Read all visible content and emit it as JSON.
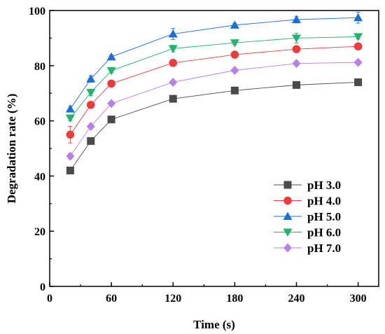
{
  "chart_data": {
    "type": "line",
    "xlabel": "Time (s)",
    "ylabel": "Degradation rate (%)",
    "xlim": [
      0,
      320
    ],
    "ylim": [
      0,
      100
    ],
    "xticks": [
      0,
      60,
      120,
      180,
      240,
      300
    ],
    "yticks": [
      0,
      20,
      40,
      60,
      80,
      100
    ],
    "x": [
      20,
      40,
      60,
      120,
      180,
      240,
      300
    ],
    "legend_position": "bottom-right",
    "grid": false,
    "series": [
      {
        "name": "pH 3.0",
        "color": "#4a4a4a",
        "marker": "square",
        "values": [
          42.0,
          52.7,
          60.5,
          68.0,
          71.0,
          73.0,
          74.0
        ],
        "errors": [
          1.2,
          1.2,
          0.6,
          0.6,
          0.5,
          0.5,
          0.5
        ]
      },
      {
        "name": "pH 4.0",
        "color": "#ef3b3b",
        "marker": "circle",
        "values": [
          55.0,
          65.8,
          73.5,
          81.0,
          84.0,
          86.0,
          87.0
        ],
        "errors": [
          3.0,
          0.9,
          0.6,
          0.6,
          0.5,
          0.6,
          0.5
        ]
      },
      {
        "name": "pH 5.0",
        "color": "#1a6fdb",
        "marker": "triangle-up",
        "values": [
          64.3,
          75.2,
          83.2,
          91.5,
          94.7,
          96.7,
          97.4
        ],
        "errors": [
          1.0,
          1.2,
          0.7,
          2.0,
          0.6,
          1.2,
          2.0
        ]
      },
      {
        "name": "pH 6.0",
        "color": "#1fb56a",
        "marker": "triangle-down",
        "values": [
          61.0,
          70.3,
          78.2,
          86.2,
          88.3,
          90.0,
          90.5
        ],
        "errors": [
          1.0,
          1.2,
          0.8,
          1.2,
          0.6,
          1.8,
          0.8
        ]
      },
      {
        "name": "pH 7.0",
        "color": "#b77fe8",
        "marker": "diamond",
        "values": [
          47.2,
          58.0,
          66.3,
          74.0,
          78.3,
          80.8,
          81.2
        ],
        "errors": [
          1.0,
          0.8,
          0.7,
          0.7,
          0.6,
          0.6,
          0.7
        ]
      }
    ]
  }
}
